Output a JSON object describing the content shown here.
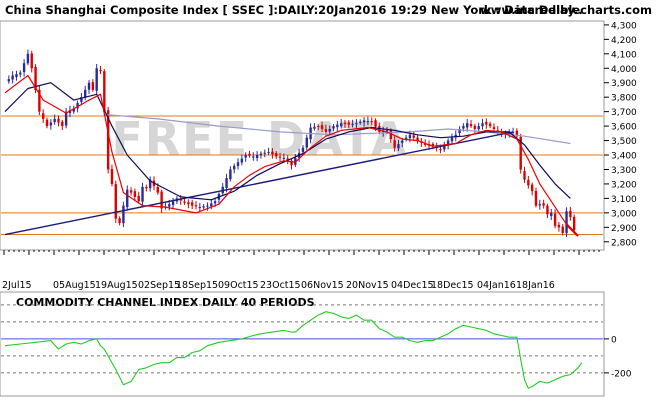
{
  "header": {
    "title": "China Shanghai Composite Index [ SSEC ]:DAILY:20Jan2016 19:29 New York : Data Delay..",
    "site": "www.incrediblecharts.com",
    "watermark": "FREE DATA"
  },
  "colors": {
    "background": "#ffffff",
    "candle_up": "#2a2a9a",
    "candle_down": "#dd0000",
    "ma_short": "#ee0000",
    "ma_medium": "#0a0a5a",
    "ma_long": "#9a9acd",
    "trendline": "#1a1a7a",
    "levels": "#e07818",
    "cci_line": "#22cc22",
    "cci_zero": "#4a4aff",
    "cci_bands": "#777777",
    "watermark": "#c8c8c8",
    "frame": "#999999"
  },
  "chart_data": [
    {
      "type": "line",
      "title": "China Shanghai Composite Index [ SSEC ]:DAILY:20Jan2016 19:29 New York : Data Delay..",
      "x_tick_labels": [
        "2Jul15",
        "05Aug15",
        "19Aug15",
        "02Sep15",
        "18Sep15",
        "09Oct15",
        "23Oct15",
        "06Nov15",
        "20Nov15",
        "04Dec15",
        "18Dec15",
        "04Jan16",
        "18Jan16"
      ],
      "y_ticks": [
        2800,
        2900,
        3000,
        3100,
        3200,
        3300,
        3400,
        3500,
        3600,
        3700,
        3800,
        3900,
        4000,
        4100,
        4200,
        4300
      ],
      "y_tick_labels": [
        "2,800",
        "2,900",
        "3,000",
        "3,100",
        "3,200",
        "3,300",
        "3,400",
        "3,500",
        "3,600",
        "3,700",
        "3,800",
        "3,900",
        "4,000",
        "4,100",
        "4,200",
        "4,300"
      ],
      "ylim": [
        2750,
        4320
      ],
      "support_resistance_levels": [
        3000,
        3400,
        3670,
        2850
      ],
      "trendline": {
        "from": [
          0,
          2850
        ],
        "to": [
          133,
          3560
        ]
      },
      "close_points": [
        [
          0,
          3900
        ],
        [
          2,
          3950
        ],
        [
          4,
          3970
        ],
        [
          6,
          4100
        ],
        [
          7,
          4000
        ],
        [
          9,
          3700
        ],
        [
          11,
          3600
        ],
        [
          13,
          3650
        ],
        [
          15,
          3600
        ],
        [
          16,
          3700
        ],
        [
          18,
          3720
        ],
        [
          20,
          3800
        ],
        [
          22,
          3900
        ],
        [
          23,
          3850
        ],
        [
          24,
          4000
        ],
        [
          25,
          3980
        ],
        [
          26,
          3700
        ],
        [
          27,
          3300
        ],
        [
          28,
          3200
        ],
        [
          29,
          2960
        ],
        [
          30,
          2930
        ],
        [
          31,
          3050
        ],
        [
          32,
          3160
        ],
        [
          33,
          3140
        ],
        [
          35,
          3080
        ],
        [
          36,
          3180
        ],
        [
          37,
          3170
        ],
        [
          38,
          3230
        ],
        [
          40,
          3140
        ],
        [
          41,
          3030
        ],
        [
          43,
          3060
        ],
        [
          45,
          3100
        ],
        [
          47,
          3070
        ],
        [
          49,
          3050
        ],
        [
          51,
          3040
        ],
        [
          53,
          3050
        ],
        [
          55,
          3080
        ],
        [
          57,
          3180
        ],
        [
          59,
          3300
        ],
        [
          61,
          3350
        ],
        [
          63,
          3400
        ],
        [
          65,
          3390
        ],
        [
          67,
          3410
        ],
        [
          69,
          3420
        ],
        [
          71,
          3390
        ],
        [
          73,
          3380
        ],
        [
          75,
          3330
        ],
        [
          76,
          3380
        ],
        [
          78,
          3450
        ],
        [
          80,
          3590
        ],
        [
          82,
          3600
        ],
        [
          84,
          3560
        ],
        [
          86,
          3600
        ],
        [
          88,
          3620
        ],
        [
          90,
          3610
        ],
        [
          92,
          3620
        ],
        [
          94,
          3640
        ],
        [
          96,
          3630
        ],
        [
          98,
          3560
        ],
        [
          100,
          3570
        ],
        [
          102,
          3450
        ],
        [
          104,
          3500
        ],
        [
          106,
          3540
        ],
        [
          108,
          3500
        ],
        [
          110,
          3470
        ],
        [
          112,
          3460
        ],
        [
          114,
          3440
        ],
        [
          116,
          3500
        ],
        [
          118,
          3540
        ],
        [
          119,
          3580
        ],
        [
          121,
          3620
        ],
        [
          123,
          3580
        ],
        [
          125,
          3620
        ],
        [
          127,
          3600
        ],
        [
          129,
          3560
        ],
        [
          131,
          3540
        ],
        [
          133,
          3560
        ],
        [
          134,
          3530
        ],
        [
          135,
          3300
        ],
        [
          136,
          3230
        ],
        [
          138,
          3150
        ],
        [
          139,
          3050
        ],
        [
          140,
          3060
        ],
        [
          141,
          3050
        ],
        [
          142,
          2990
        ],
        [
          143,
          3000
        ],
        [
          144,
          2910
        ],
        [
          145,
          2900
        ],
        [
          146,
          2860
        ],
        [
          147,
          3010
        ],
        [
          148,
          2970
        ],
        [
          149,
          2880
        ]
      ],
      "ma_short_points": [
        [
          0,
          3830
        ],
        [
          6,
          3950
        ],
        [
          10,
          3780
        ],
        [
          16,
          3690
        ],
        [
          22,
          3780
        ],
        [
          25,
          3820
        ],
        [
          28,
          3420
        ],
        [
          31,
          3140
        ],
        [
          36,
          3050
        ],
        [
          42,
          3040
        ],
        [
          50,
          3000
        ],
        [
          56,
          3060
        ],
        [
          60,
          3180
        ],
        [
          64,
          3260
        ],
        [
          68,
          3320
        ],
        [
          73,
          3360
        ],
        [
          76,
          3350
        ],
        [
          80,
          3450
        ],
        [
          84,
          3530
        ],
        [
          88,
          3570
        ],
        [
          95,
          3590
        ],
        [
          100,
          3560
        ],
        [
          104,
          3510
        ],
        [
          108,
          3500
        ],
        [
          112,
          3460
        ],
        [
          118,
          3480
        ],
        [
          122,
          3540
        ],
        [
          126,
          3570
        ],
        [
          130,
          3560
        ],
        [
          134,
          3510
        ],
        [
          137,
          3370
        ],
        [
          140,
          3200
        ],
        [
          144,
          3040
        ],
        [
          147,
          2920
        ],
        [
          150,
          2840
        ]
      ],
      "ma_medium_points": [
        [
          0,
          3700
        ],
        [
          6,
          3860
        ],
        [
          12,
          3900
        ],
        [
          18,
          3780
        ],
        [
          24,
          3820
        ],
        [
          28,
          3600
        ],
        [
          32,
          3400
        ],
        [
          38,
          3220
        ],
        [
          46,
          3110
        ],
        [
          54,
          3090
        ],
        [
          60,
          3150
        ],
        [
          66,
          3260
        ],
        [
          72,
          3340
        ],
        [
          78,
          3410
        ],
        [
          84,
          3510
        ],
        [
          90,
          3560
        ],
        [
          96,
          3590
        ],
        [
          102,
          3570
        ],
        [
          108,
          3540
        ],
        [
          114,
          3520
        ],
        [
          120,
          3530
        ],
        [
          126,
          3560
        ],
        [
          132,
          3560
        ],
        [
          136,
          3470
        ],
        [
          140,
          3330
        ],
        [
          144,
          3200
        ],
        [
          148,
          3100
        ]
      ],
      "ma_long_points": [
        [
          26,
          3680
        ],
        [
          40,
          3650
        ],
        [
          56,
          3600
        ],
        [
          72,
          3560
        ],
        [
          86,
          3540
        ],
        [
          96,
          3550
        ],
        [
          106,
          3560
        ],
        [
          116,
          3580
        ],
        [
          126,
          3560
        ],
        [
          136,
          3530
        ],
        [
          148,
          3480
        ]
      ]
    },
    {
      "type": "line",
      "title": "COMMODITY CHANNEL INDEX DAILY 40 PERIODS",
      "y_ticks": [
        0,
        -200
      ],
      "y_tick_labels": [
        "0",
        "-200"
      ],
      "ylim": [
        -330,
        270
      ],
      "band_levels": [
        200,
        100,
        -100,
        -200
      ],
      "points": [
        [
          0,
          -40
        ],
        [
          4,
          -30
        ],
        [
          8,
          -20
        ],
        [
          12,
          -10
        ],
        [
          14,
          -60
        ],
        [
          16,
          -30
        ],
        [
          18,
          -20
        ],
        [
          20,
          -30
        ],
        [
          22,
          -10
        ],
        [
          24,
          0
        ],
        [
          25,
          -40
        ],
        [
          26,
          -60
        ],
        [
          27,
          -100
        ],
        [
          29,
          -180
        ],
        [
          31,
          -270
        ],
        [
          33,
          -250
        ],
        [
          35,
          -180
        ],
        [
          37,
          -170
        ],
        [
          39,
          -150
        ],
        [
          41,
          -140
        ],
        [
          43,
          -140
        ],
        [
          45,
          -110
        ],
        [
          47,
          -110
        ],
        [
          49,
          -80
        ],
        [
          51,
          -70
        ],
        [
          53,
          -40
        ],
        [
          56,
          -20
        ],
        [
          59,
          -10
        ],
        [
          62,
          0
        ],
        [
          65,
          20
        ],
        [
          67,
          30
        ],
        [
          70,
          40
        ],
        [
          73,
          50
        ],
        [
          75,
          40
        ],
        [
          76,
          40
        ],
        [
          78,
          80
        ],
        [
          80,
          110
        ],
        [
          82,
          140
        ],
        [
          84,
          160
        ],
        [
          86,
          150
        ],
        [
          88,
          130
        ],
        [
          90,
          120
        ],
        [
          92,
          140
        ],
        [
          94,
          110
        ],
        [
          96,
          110
        ],
        [
          98,
          60
        ],
        [
          100,
          40
        ],
        [
          102,
          10
        ],
        [
          104,
          10
        ],
        [
          106,
          -10
        ],
        [
          108,
          -20
        ],
        [
          110,
          -10
        ],
        [
          112,
          -10
        ],
        [
          114,
          10
        ],
        [
          116,
          30
        ],
        [
          118,
          60
        ],
        [
          120,
          80
        ],
        [
          122,
          70
        ],
        [
          124,
          60
        ],
        [
          126,
          50
        ],
        [
          128,
          30
        ],
        [
          130,
          20
        ],
        [
          132,
          10
        ],
        [
          134,
          10
        ],
        [
          135,
          -120
        ],
        [
          136,
          -240
        ],
        [
          137,
          -290
        ],
        [
          138,
          -280
        ],
        [
          140,
          -250
        ],
        [
          142,
          -260
        ],
        [
          144,
          -240
        ],
        [
          146,
          -220
        ],
        [
          148,
          -210
        ],
        [
          150,
          -170
        ],
        [
          151,
          -140
        ]
      ]
    }
  ]
}
